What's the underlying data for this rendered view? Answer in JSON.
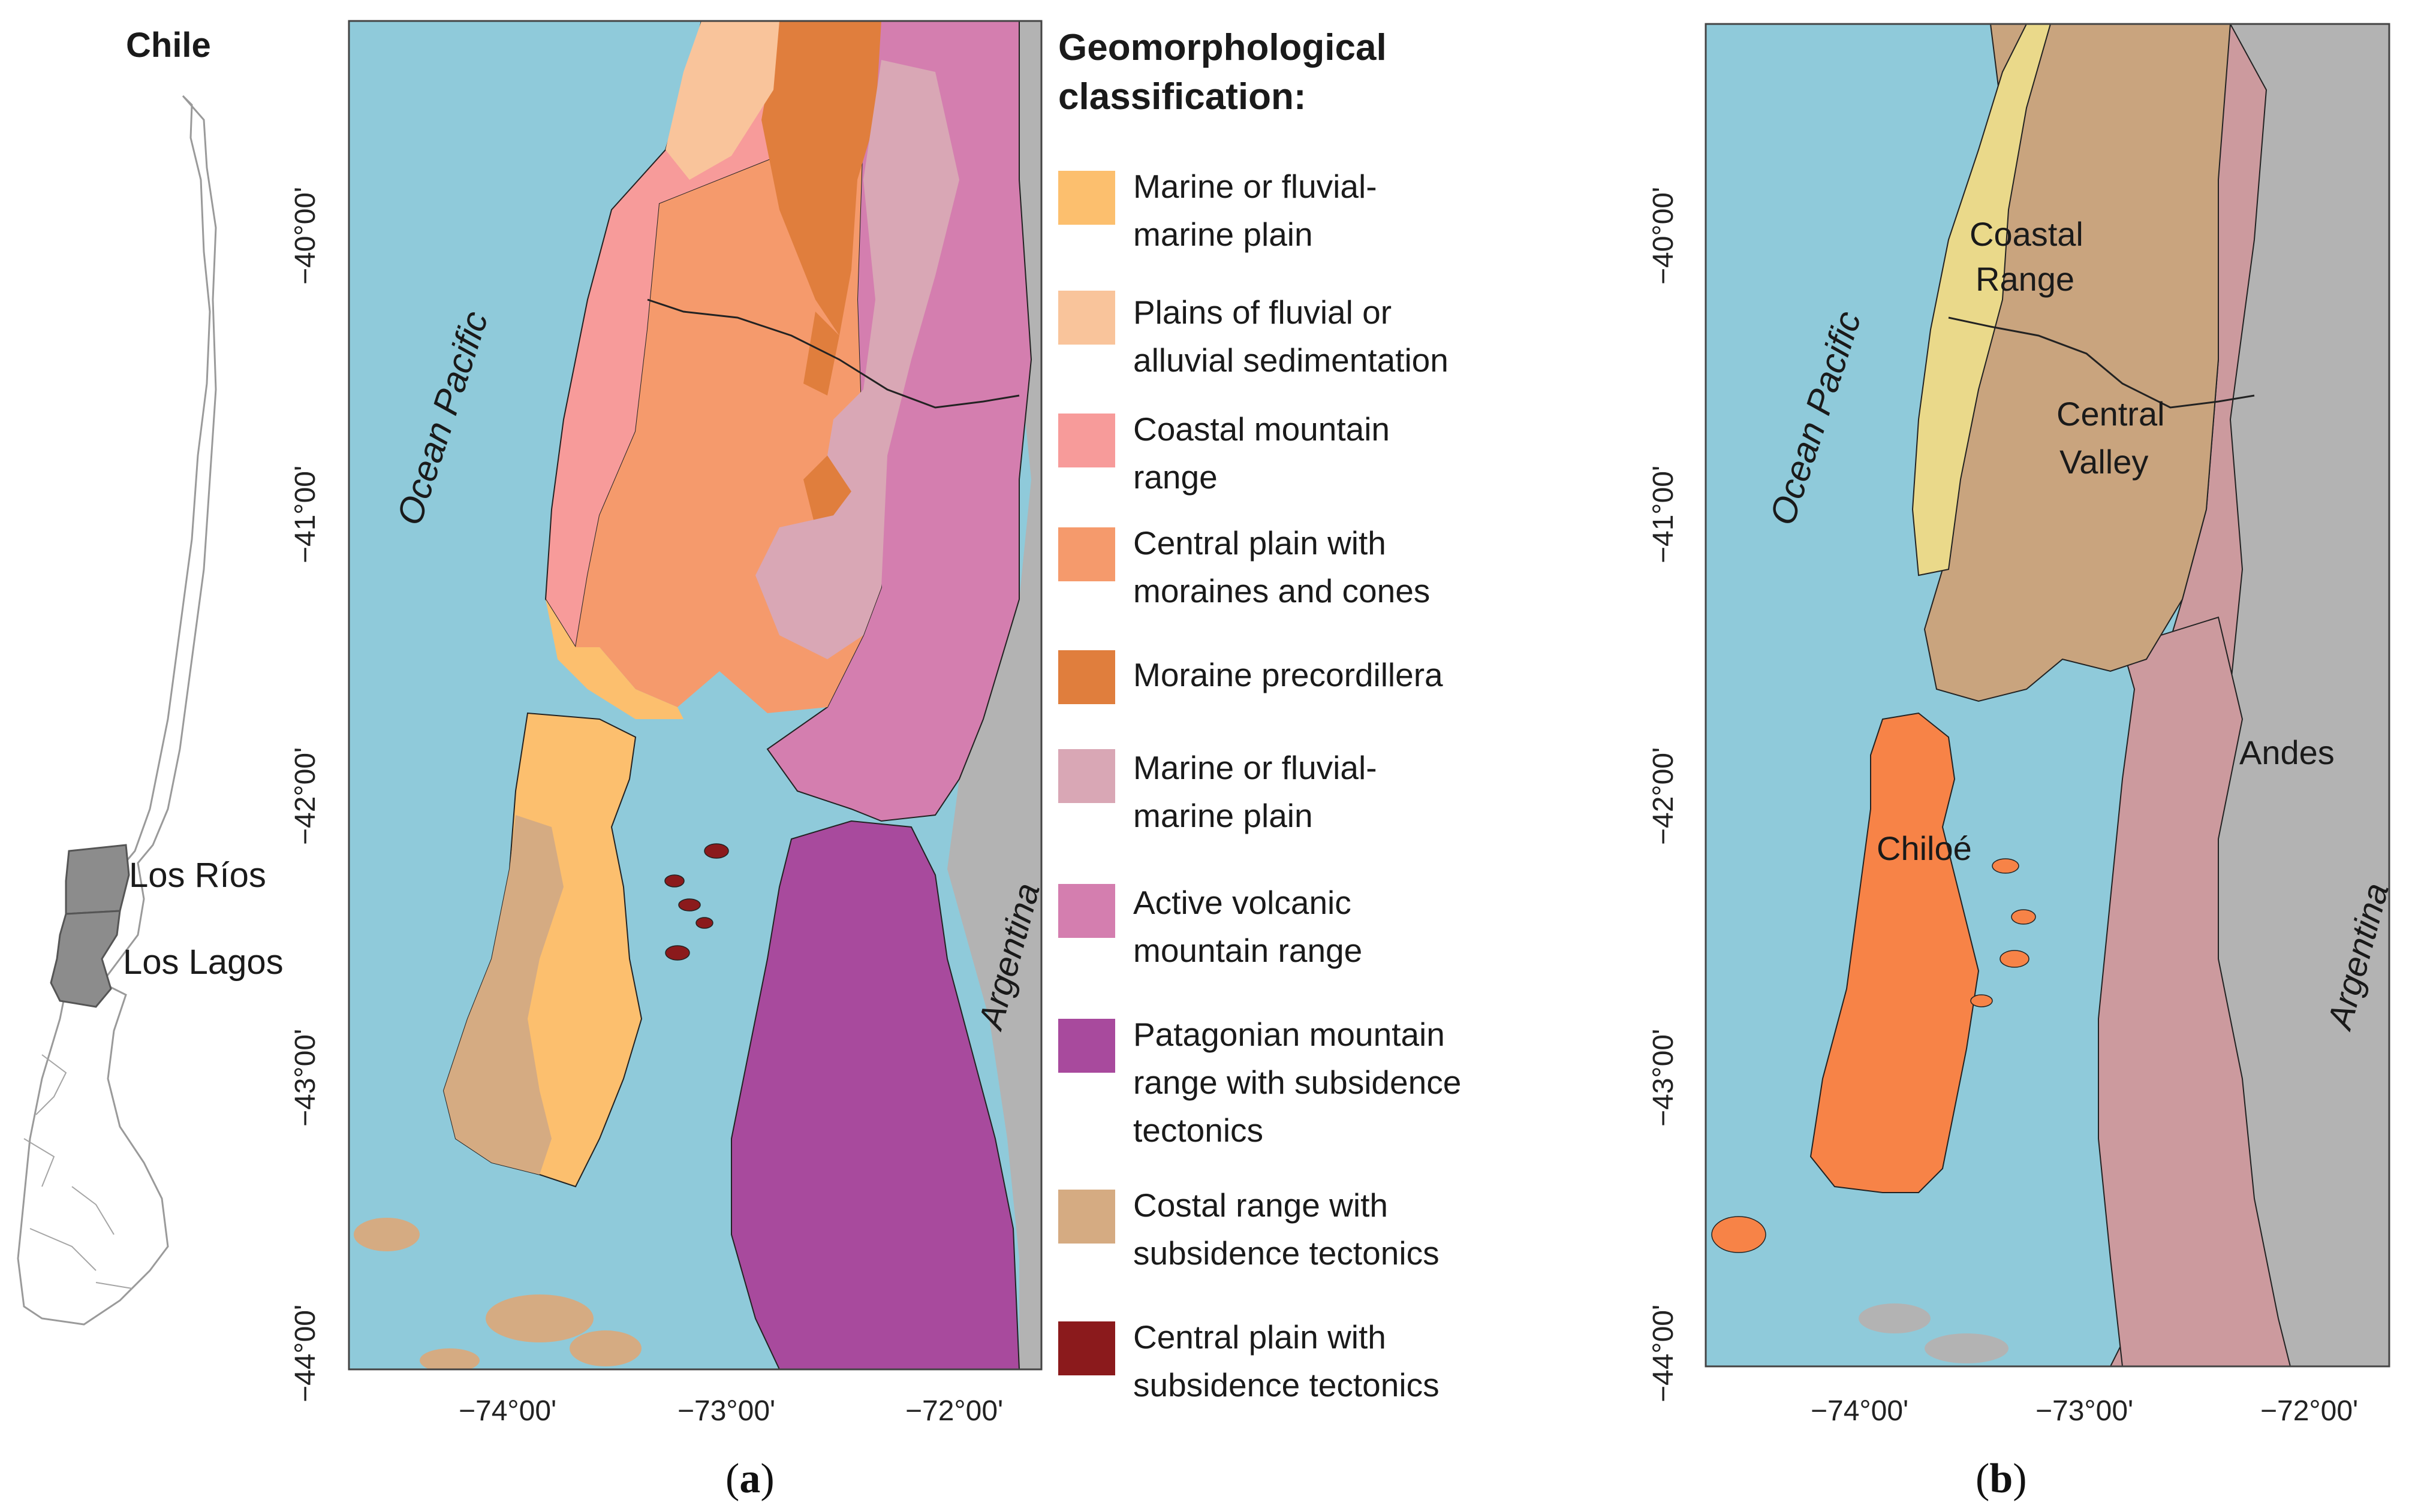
{
  "inset": {
    "title": "Chile",
    "regions": [
      "Los Ríos",
      "Los Lagos"
    ]
  },
  "panel_a": {
    "caption_open": "(",
    "caption_letter": "a",
    "caption_close": ")",
    "ocean_label": "Ocean Pacific",
    "country_label": "Argentina",
    "lat_ticks": [
      "−40°00'",
      "−41°00'",
      "−42°00'",
      "−43°00'",
      "−44°00'"
    ],
    "lon_ticks": [
      "−74°00'",
      "−73°00'",
      "−72°00'"
    ]
  },
  "legend": {
    "title_line1": "Geomorphological",
    "title_line2": "classification:",
    "items": [
      {
        "line1": "Marine or fluvial-",
        "line2": "marine plain",
        "color": "#FCBF6E"
      },
      {
        "line1": "Plains of fluvial or",
        "line2": "alluvial sedimentation",
        "color": "#F9C49B"
      },
      {
        "line1": "Coastal mountain",
        "line2": "range",
        "color": "#F79B9A"
      },
      {
        "line1": "Central plain with",
        "line2": "moraines and cones",
        "color": "#F59A6C"
      },
      {
        "line1": "Moraine precordillera",
        "line2": "",
        "color": "#E07E3D"
      },
      {
        "line1": "Marine or fluvial-",
        "line2": "marine plain",
        "color": "#D9A7B5"
      },
      {
        "line1": "Active volcanic",
        "line2": "mountain range",
        "color": "#D47EAF"
      },
      {
        "line1": "Patagonian mountain",
        "line2": "range with subsidence",
        "line3": "tectonics",
        "color": "#A84A9D"
      },
      {
        "line1": "Costal range with",
        "line2": "subsidence tectonics",
        "color": "#D5AB82"
      },
      {
        "line1": "Central plain with",
        "line2": "subsidence tectonics",
        "color": "#8B1A1C"
      }
    ]
  },
  "panel_b": {
    "caption_open": "(",
    "caption_letter": "b",
    "caption_close": ")",
    "ocean_label": "Ocean Pacific",
    "country_label": "Argentina",
    "units": [
      {
        "line1": "Coastal",
        "line2": "Range",
        "color": "#EAD98A"
      },
      {
        "line1": "Central",
        "line2": "Valley",
        "color": "#C9A47E"
      },
      {
        "line1": "Andes",
        "line2": "",
        "color": "#CC9A9E"
      },
      {
        "line1": "Chiloé",
        "line2": "",
        "color": "#F78347"
      }
    ],
    "lat_ticks": [
      "−40°00'",
      "−41°00'",
      "−42°00'",
      "−43°00'",
      "−44°00'"
    ],
    "lon_ticks": [
      "−74°00'",
      "−73°00'",
      "−72°00'"
    ]
  },
  "colors": {
    "ocean": "#8FCADA",
    "argentina": "#B3B3B3",
    "inset_fill": "#8C8C8C"
  }
}
